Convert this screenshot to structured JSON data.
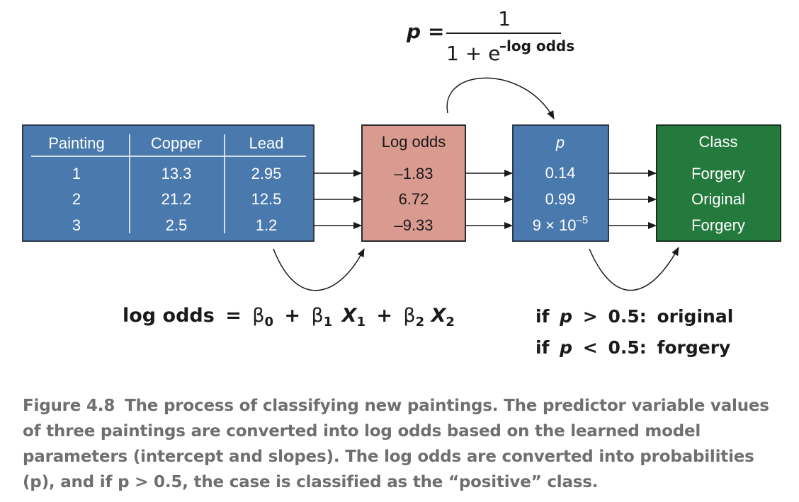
{
  "formula_p": {
    "lhs": "p",
    "equals": "=",
    "numerator": "1",
    "denominator": "1 + e",
    "exponent": "–log odds"
  },
  "input_table": {
    "headers": [
      "Painting",
      "Copper",
      "Lead"
    ],
    "rows": [
      [
        "1",
        "13.3",
        "2.95"
      ],
      [
        "2",
        "21.2",
        "12.5"
      ],
      [
        "3",
        "2.5",
        "1.2"
      ]
    ]
  },
  "log_odds_box": {
    "header": "Log odds",
    "values": [
      "–1.83",
      "6.72",
      "–9.33"
    ]
  },
  "p_box": {
    "header": "p",
    "values": [
      "0.14",
      "0.99"
    ],
    "sci_mantissa": "9 × 10",
    "sci_exponent": "–5"
  },
  "class_box": {
    "header": "Class",
    "values": [
      "Forgery",
      "Original",
      "Forgery"
    ]
  },
  "formula_log_odds": {
    "lhs": "log odds",
    "equals": "=",
    "beta": "β",
    "sub0": "0",
    "sub1": "1",
    "sub2": "2",
    "plus": "+",
    "x": "X"
  },
  "rules": {
    "if": "if",
    "p": "p",
    "gt": ">",
    "lt": "<",
    "threshold": "0.5:",
    "original": "original",
    "forgery": "forgery"
  },
  "caption": {
    "label": "Figure 4.8",
    "text": "The process of classifying new paintings. The predictor variable values of three paintings are converted into log odds based on the learned model parameters (intercept and slopes). The log odds are converted into probabilities (p), and if p > 0.5, the case is classified as the “positive” class."
  },
  "colors": {
    "blue": "#4a7aad",
    "salmon": "#d99a8f",
    "green": "#247a3d",
    "ink": "#1a1a1a",
    "caption": "#6f6f6f"
  }
}
